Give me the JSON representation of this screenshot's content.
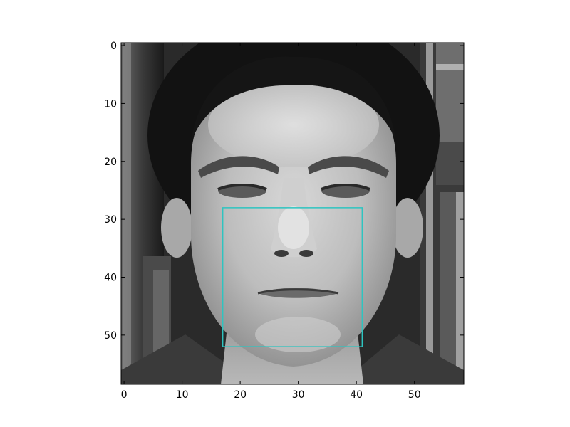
{
  "chart_data": {
    "type": "image",
    "image": {
      "description_hidden": true,
      "colormap": "gray",
      "extent_x": [
        -0.5,
        58.5
      ],
      "extent_y": [
        -0.5,
        58.5
      ],
      "y_inverted": true
    },
    "x_ticks": [
      0,
      10,
      20,
      30,
      40,
      50
    ],
    "y_ticks": [
      0,
      10,
      20,
      30,
      40,
      50
    ],
    "x_tick_labels": [
      "0",
      "10",
      "20",
      "30",
      "40",
      "50"
    ],
    "y_tick_labels": [
      "0",
      "10",
      "20",
      "30",
      "40",
      "50"
    ],
    "xlim": [
      -0.5,
      58.5
    ],
    "ylim": [
      58.5,
      -0.5
    ],
    "grid": false,
    "title": "",
    "xlabel": "",
    "ylabel": "",
    "annotations": [
      {
        "type": "rectangle",
        "x0": 17,
        "y0": 28,
        "x1": 41,
        "y1": 52,
        "color": "#2ec4c0"
      }
    ]
  }
}
